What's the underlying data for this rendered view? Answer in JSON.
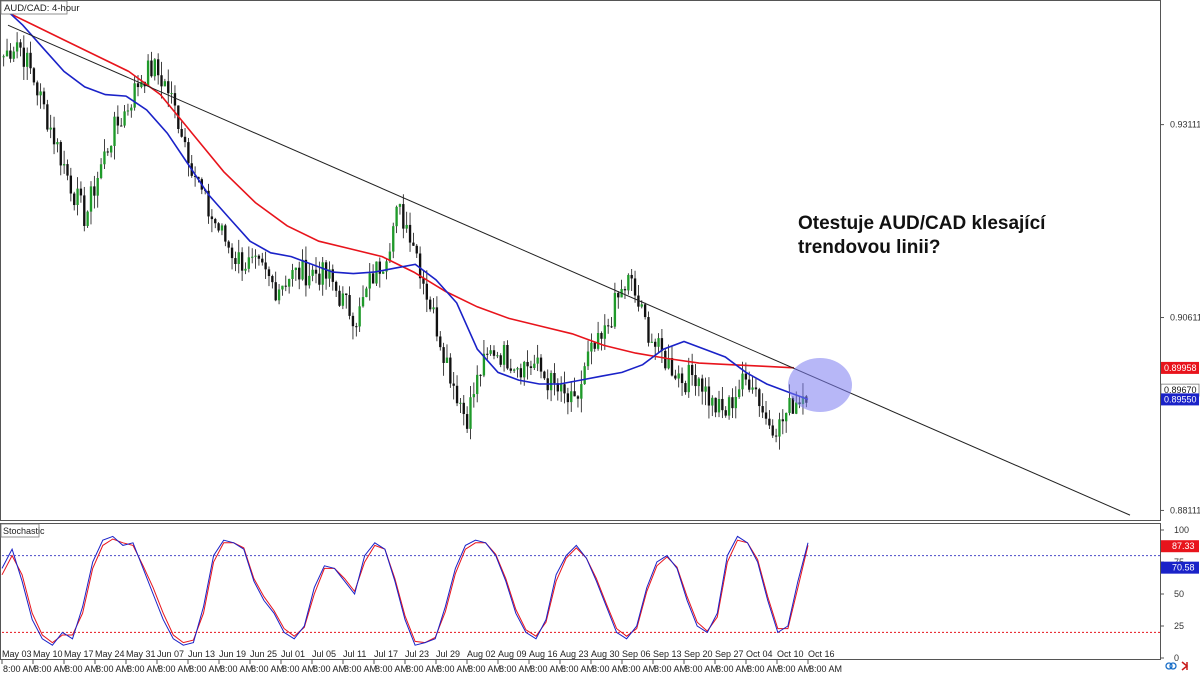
{
  "chart_data": [
    {
      "type": "candlestick",
      "title": "AUD/CAD: 4-hour",
      "annotation": "Otestuje AUD/CAD klesající trendovou linii?",
      "ylim": [
        0.88,
        0.947
      ],
      "y_ticks": [
        "0.93111",
        "0.90611",
        "0.88111"
      ],
      "y_tick_values": [
        0.93111,
        0.90611,
        0.88111
      ],
      "price_labels": [
        {
          "value": "0.89958",
          "color": "#e8141c"
        },
        {
          "value": "0.89670",
          "color": "#ffffff"
        },
        {
          "value": "0.89550",
          "color": "#1a22c8"
        }
      ],
      "x_dates": [
        "May 03",
        "May 10",
        "May 17",
        "May 24",
        "May 31",
        "Jun 07",
        "Jun 13",
        "Jun 19",
        "Jun 25",
        "Jul 01",
        "Jul 05",
        "Jul 11",
        "Jul 17",
        "Jul 23",
        "Jul 29",
        "Aug 02",
        "Aug 09",
        "Aug 16",
        "Aug 23",
        "Aug 30",
        "Sep 06",
        "Sep 13",
        "Sep 20",
        "Sep 27",
        "Oct 04",
        "Oct 10",
        "Oct 16"
      ],
      "x_time_label": "8:00 AM",
      "close_path": [
        0.94,
        0.942,
        0.938,
        0.933,
        0.928,
        0.923,
        0.919,
        0.925,
        0.93,
        0.933,
        0.937,
        0.9385,
        0.936,
        0.931,
        0.925,
        0.92,
        0.917,
        0.914,
        0.913,
        0.912,
        0.91,
        0.9115,
        0.912,
        0.912,
        0.911,
        0.908,
        0.906,
        0.911,
        0.914,
        0.92,
        0.917,
        0.91,
        0.904,
        0.898,
        0.893,
        0.899,
        0.902,
        0.901,
        0.9,
        0.9,
        0.898,
        0.896,
        0.8945,
        0.901,
        0.903,
        0.908,
        0.911,
        0.906,
        0.902,
        0.9,
        0.898,
        0.899,
        0.895,
        0.8935,
        0.897,
        0.8985,
        0.893,
        0.892,
        0.895,
        0.8967
      ],
      "ma_blue": [
        0.9465,
        0.944,
        0.941,
        0.938,
        0.936,
        0.935,
        0.9348,
        0.933,
        0.93,
        0.926,
        0.922,
        0.919,
        0.916,
        0.9145,
        0.914,
        0.913,
        0.912,
        0.9118,
        0.912,
        0.9125,
        0.913,
        0.911,
        0.908,
        0.902,
        0.899,
        0.898,
        0.8975,
        0.8975,
        0.898,
        0.8985,
        0.899,
        0.9,
        0.902,
        0.903,
        0.902,
        0.901,
        0.899,
        0.8975,
        0.8965,
        0.8955
      ],
      "ma_red": [
        0.946,
        0.944,
        0.942,
        0.94,
        0.938,
        0.935,
        0.93,
        0.925,
        0.921,
        0.918,
        0.916,
        0.915,
        0.914,
        0.912,
        0.9095,
        0.9075,
        0.906,
        0.905,
        0.904,
        0.9025,
        0.9015,
        0.9008,
        0.9002,
        0.9,
        0.8998,
        0.8996
      ],
      "trendline": [
        0.944,
        0.8805
      ],
      "x_range_dates": [
        "May 03",
        "Oct 16"
      ]
    },
    {
      "type": "line",
      "title": "Stochastic",
      "ylim": [
        0,
        100
      ],
      "y_ticks": [
        "100",
        "75",
        "50",
        "25",
        "0"
      ],
      "y_tick_values": [
        100,
        75,
        50,
        25,
        0
      ],
      "levels": [
        80,
        20
      ],
      "value_labels": [
        {
          "value": "87.33",
          "color": "#e8141c"
        },
        {
          "value": "70.58",
          "color": "#1a22c8"
        }
      ],
      "series_k": [
        70,
        85,
        60,
        30,
        15,
        10,
        20,
        15,
        40,
        75,
        92,
        95,
        88,
        90,
        70,
        50,
        30,
        15,
        10,
        12,
        40,
        80,
        92,
        90,
        85,
        60,
        45,
        35,
        20,
        15,
        25,
        55,
        72,
        70,
        60,
        50,
        80,
        90,
        85,
        60,
        30,
        10,
        12,
        15,
        40,
        70,
        88,
        92,
        90,
        80,
        60,
        35,
        20,
        15,
        30,
        65,
        80,
        88,
        78,
        60,
        40,
        20,
        15,
        25,
        55,
        75,
        80,
        70,
        45,
        25,
        20,
        35,
        80,
        95,
        90,
        75,
        45,
        20,
        25,
        60,
        90
      ],
      "series_d": [
        65,
        80,
        65,
        35,
        18,
        12,
        18,
        18,
        35,
        70,
        88,
        93,
        90,
        88,
        72,
        55,
        35,
        18,
        12,
        14,
        35,
        75,
        90,
        90,
        86,
        62,
        48,
        37,
        23,
        17,
        24,
        50,
        70,
        70,
        62,
        52,
        75,
        88,
        85,
        62,
        33,
        13,
        12,
        16,
        36,
        66,
        85,
        90,
        90,
        81,
        62,
        38,
        22,
        17,
        28,
        60,
        78,
        86,
        78,
        62,
        42,
        23,
        17,
        23,
        52,
        72,
        79,
        71,
        48,
        28,
        21,
        32,
        75,
        92,
        90,
        77,
        48,
        23,
        23,
        55,
        88
      ]
    }
  ]
}
